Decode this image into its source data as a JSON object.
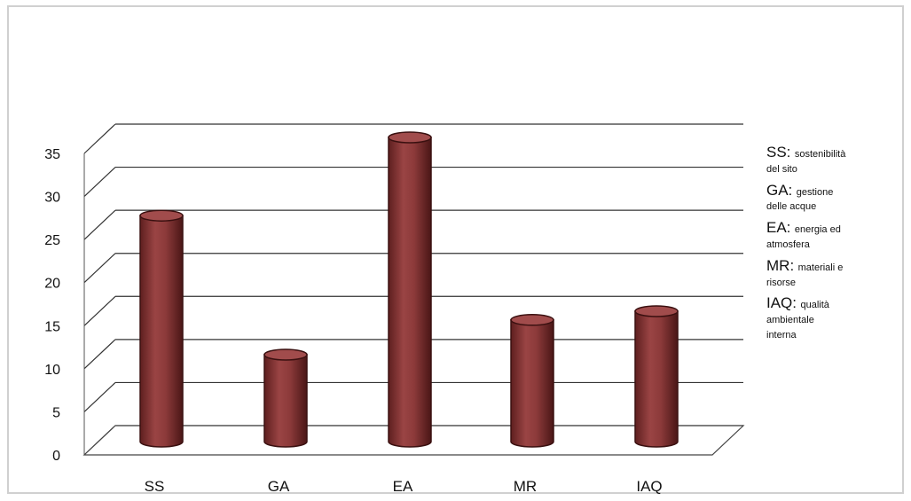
{
  "chart_data": {
    "type": "bar",
    "title": "",
    "xlabel": "",
    "ylabel": "",
    "categories": [
      "SS",
      "GA",
      "EA",
      "MR",
      "IAQ"
    ],
    "values": [
      26,
      10,
      35,
      14,
      15
    ],
    "ylim": [
      0,
      35
    ],
    "yticks": [
      "0",
      "5",
      "10",
      "15",
      "20",
      "25",
      "30",
      "35"
    ],
    "grid": true,
    "bar_style": "3d-cylinder",
    "bar_color": "#8c3a3a",
    "legend_position": "right",
    "legend": [
      {
        "code": "SS:",
        "desc_1": "sostenibilità",
        "desc_2": "del sito"
      },
      {
        "code": "GA:",
        "desc_1": "gestione",
        "desc_2": "delle acque"
      },
      {
        "code": "EA:",
        "desc_1": "energia ed",
        "desc_2": "atmosfera"
      },
      {
        "code": "MR:",
        "desc_1": "materiali e",
        "desc_2": "risorse"
      },
      {
        "code": "IAQ:",
        "desc_1": "qualità",
        "desc_2": "ambientale",
        "desc_3": "interna"
      }
    ]
  }
}
